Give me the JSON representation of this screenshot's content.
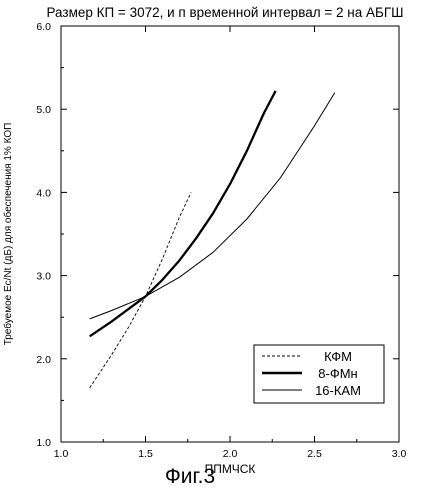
{
  "chart_data": {
    "type": "line",
    "title": "Размер КП = 3072, и п временной интервал = 2 на АБГШ",
    "xlabel": "ППМЧСК",
    "ylabel": "Требуемое Ec/Nt (дБ) для обеспечения 1% КОП",
    "xlim": [
      1.0,
      3.0
    ],
    "ylim": [
      1.0,
      6.0
    ],
    "x_ticks": [
      "1.0",
      "1.5",
      "2.0",
      "2.5",
      "3.0"
    ],
    "y_ticks": [
      "1.0",
      "2.0",
      "3.0",
      "4.0",
      "5.0",
      "6.0"
    ],
    "grid": false,
    "legend_position": "bottom-right",
    "series": [
      {
        "name": "КФМ",
        "style": "dashed",
        "x": [
          1.17,
          1.3,
          1.4,
          1.5,
          1.6,
          1.7,
          1.77
        ],
        "y": [
          1.65,
          2.05,
          2.38,
          2.75,
          3.2,
          3.7,
          4.0
        ]
      },
      {
        "name": "8-ФМн",
        "style": "thick",
        "x": [
          1.17,
          1.3,
          1.4,
          1.5,
          1.6,
          1.7,
          1.8,
          1.9,
          2.0,
          2.1,
          2.2,
          2.27
        ],
        "y": [
          2.27,
          2.45,
          2.6,
          2.75,
          2.95,
          3.18,
          3.45,
          3.75,
          4.1,
          4.5,
          4.95,
          5.22
        ]
      },
      {
        "name": "16-КАМ",
        "style": "thin",
        "x": [
          1.17,
          1.3,
          1.5,
          1.7,
          1.9,
          2.1,
          2.3,
          2.5,
          2.62
        ],
        "y": [
          2.48,
          2.58,
          2.75,
          2.98,
          3.28,
          3.68,
          4.18,
          4.8,
          5.2
        ]
      }
    ]
  },
  "caption": "Фиг.3"
}
